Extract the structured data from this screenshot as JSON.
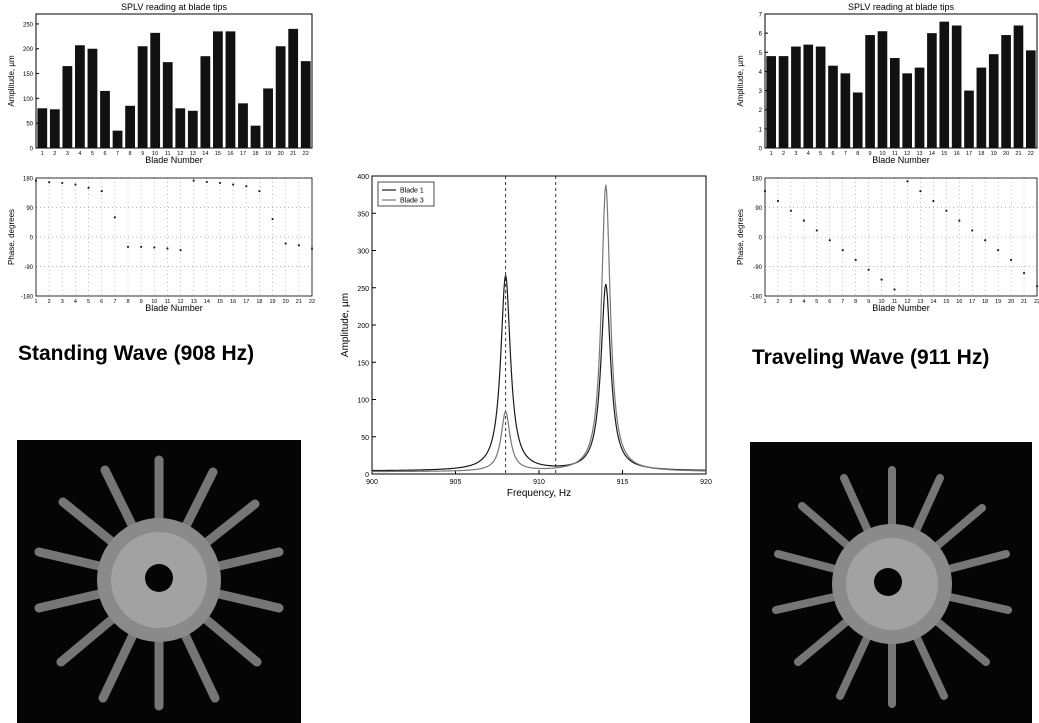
{
  "captions": {
    "standing": "Standing Wave (908 Hz)",
    "traveling": "Traveling Wave (911 Hz)"
  },
  "colors": {
    "bar": "#111111",
    "axis": "#000000",
    "grid": "#9a9a9a",
    "photo_bg": "#050505",
    "disk": "#8a8a8a"
  },
  "chart_data": [
    {
      "id": "standing-amplitude",
      "type": "bar",
      "title": "SPLV reading at blade tips",
      "xlabel": "Blade Number",
      "ylabel": "Amplitude, µm",
      "categories": [
        "1",
        "2",
        "3",
        "4",
        "5",
        "6",
        "7",
        "8",
        "9",
        "10",
        "11",
        "12",
        "13",
        "14",
        "15",
        "16",
        "17",
        "18",
        "19",
        "20",
        "21",
        "22"
      ],
      "values": [
        80,
        78,
        165,
        207,
        200,
        115,
        35,
        85,
        205,
        232,
        173,
        80,
        75,
        185,
        235,
        235,
        90,
        45,
        120,
        205,
        240,
        175
      ],
      "ylim": [
        0,
        270
      ],
      "yticks": [
        0,
        50,
        100,
        150,
        200,
        250
      ],
      "grid": false
    },
    {
      "id": "standing-phase",
      "type": "scatter",
      "xlabel": "Blade Number",
      "ylabel": "Phase, degrees",
      "x": [
        1,
        2,
        3,
        4,
        5,
        6,
        7,
        8,
        9,
        10,
        11,
        12,
        13,
        14,
        15,
        16,
        17,
        18,
        19,
        20,
        21,
        22
      ],
      "y": [
        172,
        167,
        165,
        160,
        150,
        140,
        60,
        -30,
        -30,
        -32,
        -35,
        -40,
        172,
        168,
        165,
        160,
        155,
        140,
        55,
        -20,
        -25,
        -35
      ],
      "xlim": [
        1,
        22
      ],
      "ylim": [
        -180,
        180
      ],
      "xticks": [
        1,
        2,
        3,
        4,
        5,
        6,
        7,
        8,
        9,
        10,
        11,
        12,
        13,
        14,
        15,
        16,
        17,
        18,
        19,
        20,
        21,
        22
      ],
      "yticks": [
        -180,
        -90,
        0,
        90,
        180
      ],
      "grid": true
    },
    {
      "id": "frequency-response",
      "type": "line",
      "xlabel": "Frequency, Hz",
      "ylabel": "Amplitude, µm",
      "xlim": [
        900,
        920
      ],
      "ylim": [
        0,
        400
      ],
      "xticks": [
        900,
        905,
        910,
        915,
        920
      ],
      "xticklabels": [
        "900",
        "905",
        "910",
        "915",
        "920"
      ],
      "yticks": [
        0,
        50,
        100,
        150,
        200,
        250,
        300,
        350,
        400
      ],
      "legend": {
        "position": "top-left",
        "entries": [
          "Blade 1",
          "Blade 3"
        ]
      },
      "markers": [
        908,
        911
      ],
      "series": [
        {
          "name": "Blade 1",
          "color": "#1a1a1a",
          "peaks": [
            {
              "f": 908,
              "a": 262
            },
            {
              "f": 914,
              "a": 250
            }
          ],
          "width": 0.35,
          "base": 4
        },
        {
          "name": "Blade 3",
          "color": "#777777",
          "peaks": [
            {
              "f": 908,
              "a": 80
            },
            {
              "f": 914,
              "a": 385
            }
          ],
          "width": 0.32,
          "base": 3
        }
      ],
      "grid": false
    },
    {
      "id": "traveling-amplitude",
      "type": "bar",
      "title": "SPLV reading at blade tips",
      "xlabel": "Blade Number",
      "ylabel": "Amplitude, µm",
      "categories": [
        "1",
        "2",
        "3",
        "4",
        "5",
        "6",
        "7",
        "8",
        "9",
        "10",
        "11",
        "12",
        "13",
        "14",
        "15",
        "16",
        "17",
        "18",
        "19",
        "20",
        "21",
        "22"
      ],
      "values": [
        4.8,
        4.8,
        5.3,
        5.4,
        5.3,
        4.3,
        3.9,
        2.9,
        5.9,
        6.1,
        4.7,
        3.9,
        4.2,
        6.0,
        6.6,
        6.4,
        3.0,
        4.2,
        4.9,
        5.9,
        6.4,
        5.1
      ],
      "ylim": [
        0,
        7
      ],
      "yticks": [
        0,
        1,
        2,
        3,
        4,
        5,
        6,
        7
      ],
      "grid": false
    },
    {
      "id": "traveling-phase",
      "type": "scatter",
      "xlabel": "Blade Number",
      "ylabel": "Phase, degrees",
      "x": [
        1,
        2,
        3,
        4,
        5,
        6,
        7,
        8,
        9,
        10,
        11,
        12,
        13,
        14,
        15,
        16,
        17,
        18,
        19,
        20,
        21,
        22
      ],
      "y": [
        140,
        110,
        80,
        50,
        20,
        -10,
        -40,
        -70,
        -100,
        -130,
        -160,
        170,
        140,
        110,
        80,
        50,
        20,
        -10,
        -40,
        -70,
        -110,
        -150
      ],
      "xlim": [
        1,
        22
      ],
      "ylim": [
        -180,
        180
      ],
      "xticks": [
        1,
        2,
        3,
        4,
        5,
        6,
        7,
        8,
        9,
        10,
        11,
        12,
        13,
        14,
        15,
        16,
        17,
        18,
        19,
        20,
        21,
        22
      ],
      "yticks": [
        -180,
        -90,
        0,
        90,
        180
      ],
      "grid": true
    }
  ]
}
